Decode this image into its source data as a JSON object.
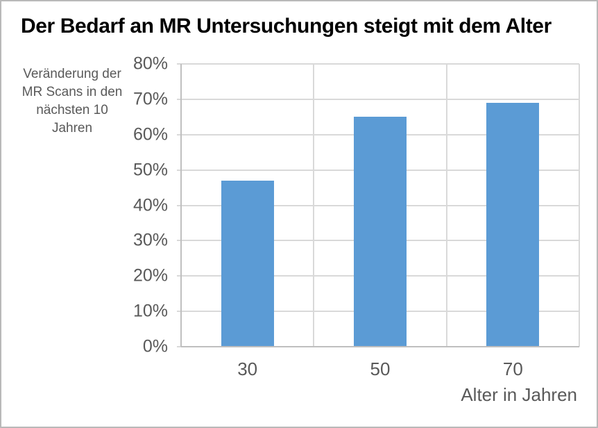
{
  "window": {
    "background": "#ffffff",
    "border_color": "#b9b9b9"
  },
  "chart_data": {
    "type": "bar",
    "title": "Der Bedarf an MR Untersuchungen steigt mit dem Alter",
    "categories": [
      "30",
      "50",
      "70"
    ],
    "values": [
      47,
      65,
      69
    ],
    "unit": "%",
    "xlabel": "Alter in Jahren",
    "ylabel": "Veränderung der MR Scans in den nächsten 10 Jahren",
    "ylabel_lines": [
      "Veränderung der",
      "MR Scans in den",
      "nächsten 10",
      "Jahren"
    ],
    "ylim": [
      0,
      80
    ],
    "ytick_step": 10,
    "yticks": [
      "0%",
      "10%",
      "20%",
      "30%",
      "40%",
      "50%",
      "60%",
      "70%",
      "80%"
    ],
    "grid": true,
    "legend_position": "none",
    "colors": {
      "bar": "#5b9bd5",
      "title_text": "#000000",
      "axis_text": "#595959",
      "gridline": "#d9d9d9",
      "axis_line": "#bfbfbf"
    }
  }
}
